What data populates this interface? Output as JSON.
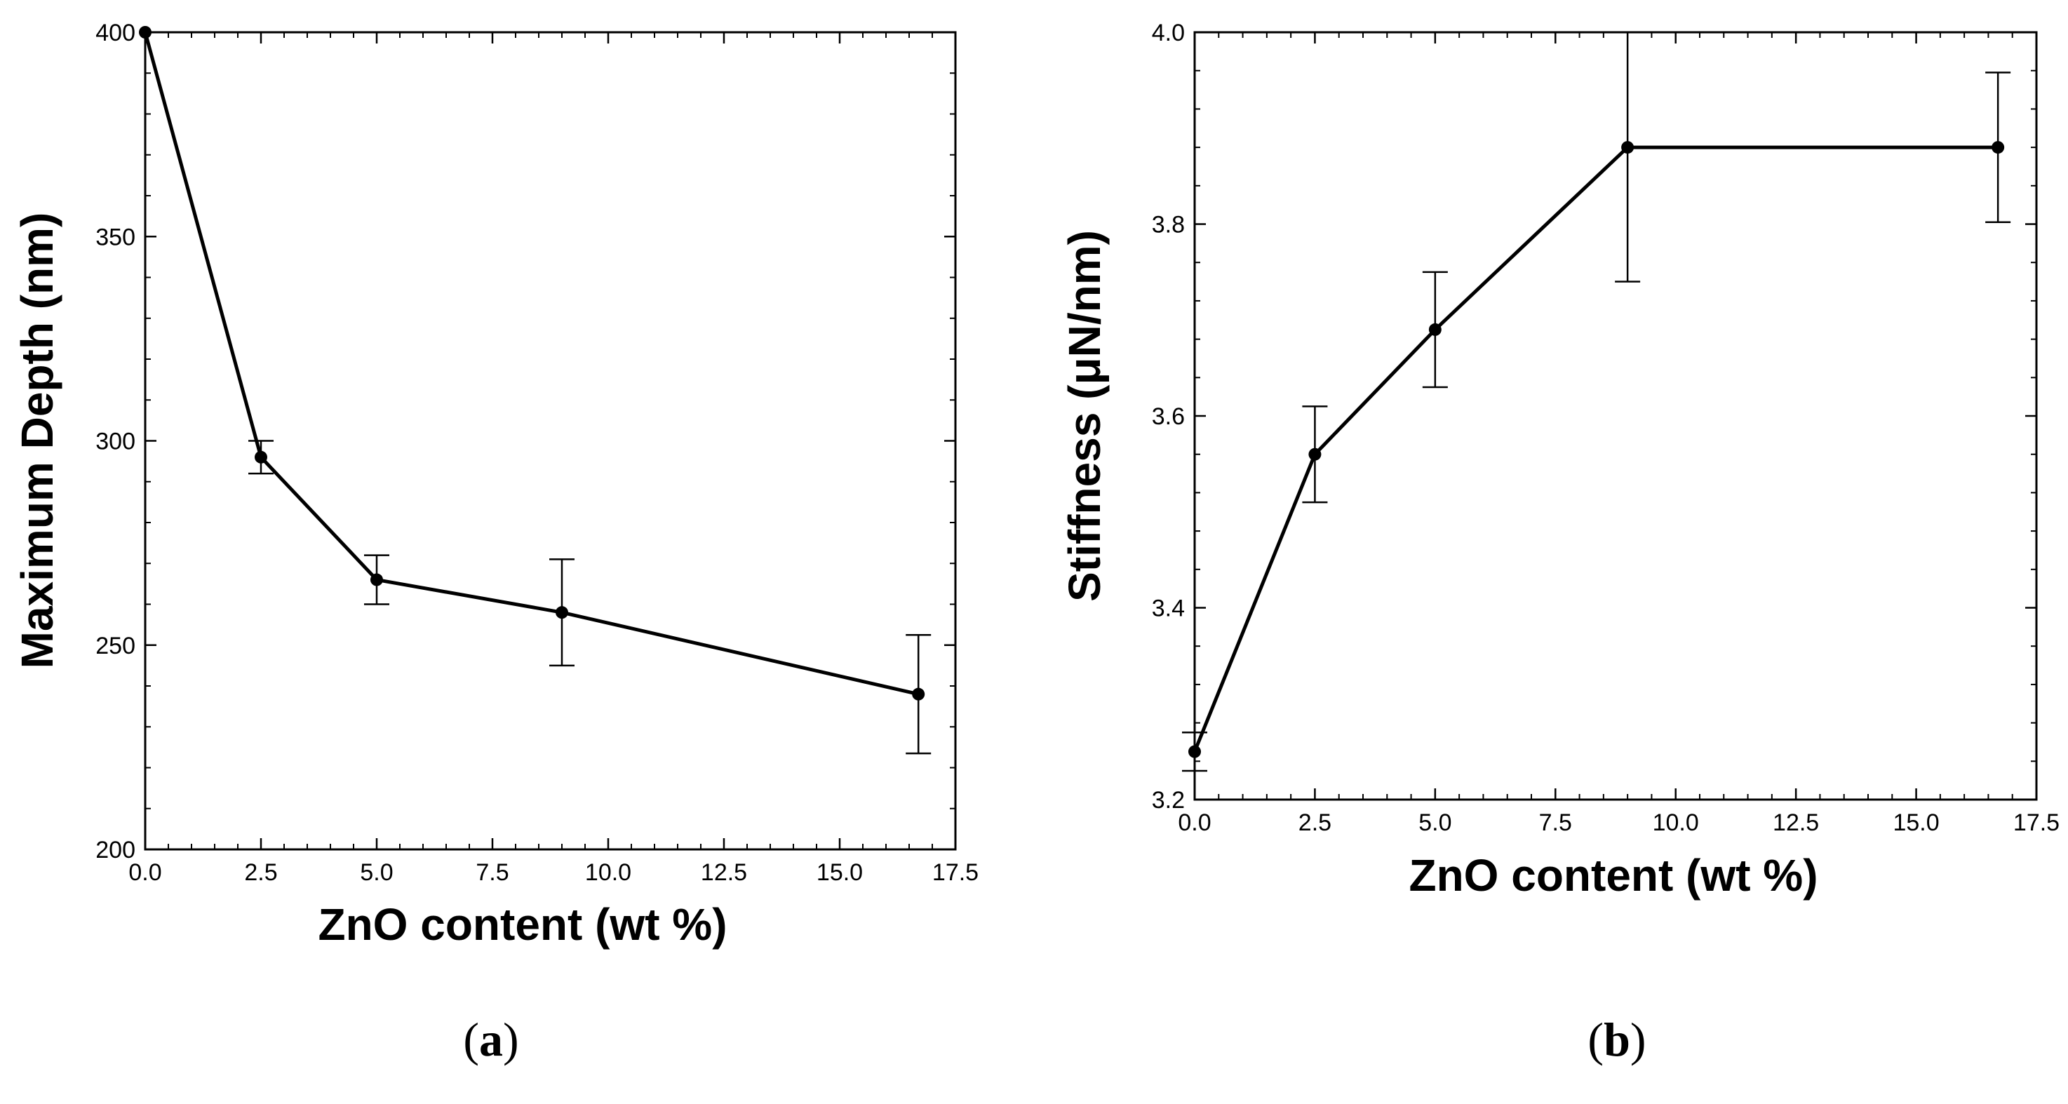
{
  "chart_data": [
    {
      "type": "line",
      "panel_label": "a",
      "xlabel": "ZnO content (wt %)",
      "ylabel": "Maximum Depth (nm)",
      "xlim": [
        0,
        17.5
      ],
      "ylim": [
        200,
        400
      ],
      "xticks": [
        0,
        2.5,
        5,
        7.5,
        10,
        12.5,
        15,
        17.5
      ],
      "xtick_labels": [
        "0.0",
        "2.5",
        "5.0",
        "7.5",
        "10.0",
        "12.5",
        "15.0",
        "17.5"
      ],
      "yticks": [
        200,
        250,
        300,
        350,
        400
      ],
      "ytick_labels": [
        "200",
        "250",
        "300",
        "350",
        "400"
      ],
      "grid": false,
      "series": [
        {
          "name": "Maximum Depth",
          "x": [
            0,
            2.5,
            5,
            9,
            16.7
          ],
          "y": [
            400,
            296,
            266,
            258,
            238
          ],
          "err": [
            0,
            4,
            6,
            13,
            14.5
          ]
        }
      ]
    },
    {
      "type": "line",
      "panel_label": "b",
      "xlabel": "ZnO content (wt %)",
      "ylabel": "Stiffness (μN/nm)",
      "xlim": [
        0,
        17.5
      ],
      "ylim": [
        3.2,
        4.0
      ],
      "xticks": [
        0,
        2.5,
        5,
        7.5,
        10,
        12.5,
        15,
        17.5
      ],
      "xtick_labels": [
        "0.0",
        "2.5",
        "5.0",
        "7.5",
        "10.0",
        "12.5",
        "15.0",
        "17.5"
      ],
      "yticks": [
        3.2,
        3.4,
        3.6,
        3.8,
        4.0
      ],
      "ytick_labels": [
        "3.2",
        "3.4",
        "3.6",
        "3.8",
        "4.0"
      ],
      "grid": false,
      "series": [
        {
          "name": "Stiffness",
          "x": [
            0,
            2.5,
            5,
            9,
            16.7
          ],
          "y": [
            3.25,
            3.56,
            3.69,
            3.88,
            3.88
          ],
          "err": [
            0.02,
            0.05,
            0.06,
            0.14,
            0.078
          ]
        }
      ]
    }
  ]
}
